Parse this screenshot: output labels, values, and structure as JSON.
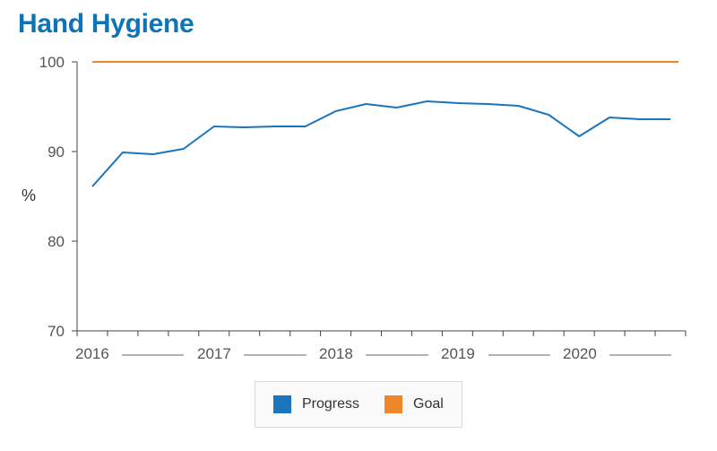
{
  "chart_data": {
    "type": "line",
    "title": "Hand Hygiene",
    "xlabel": "",
    "ylabel": "%",
    "ylim": [
      70,
      100
    ],
    "yticks": [
      "100",
      "90",
      "80",
      "70"
    ],
    "year_labels": [
      "2016",
      "2017",
      "2018",
      "2019",
      "2020"
    ],
    "x": [
      "2016 Q1",
      "2016 Q2",
      "2016 Q3",
      "2016 Q4",
      "2017 Q1",
      "2017 Q2",
      "2017 Q3",
      "2017 Q4",
      "2018 Q1",
      "2018 Q2",
      "2018 Q3",
      "2018 Q4",
      "2019 Q1",
      "2019 Q2",
      "2019 Q3",
      "2019 Q4",
      "2020 Q1",
      "2020 Q2",
      "2020 Q3",
      "2020 Q4"
    ],
    "series": [
      {
        "name": "Progress",
        "color": "#1a75bc",
        "values": [
          86.1,
          89.9,
          89.7,
          90.3,
          92.8,
          92.7,
          92.8,
          92.8,
          94.5,
          95.3,
          94.9,
          95.6,
          95.4,
          95.3,
          95.1,
          94.1,
          91.7,
          93.8,
          93.6,
          93.6
        ]
      },
      {
        "name": "Goal",
        "color": "#f0862a",
        "values": [
          100,
          100,
          100,
          100,
          100,
          100,
          100,
          100,
          100,
          100,
          100,
          100,
          100,
          100,
          100,
          100,
          100,
          100,
          100,
          100
        ]
      }
    ],
    "grid": false,
    "legend_position": "bottom"
  }
}
